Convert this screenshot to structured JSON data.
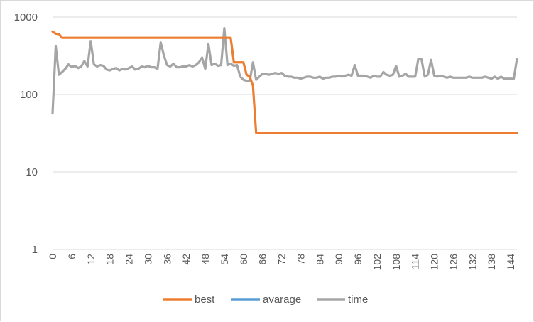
{
  "chart_data": {
    "type": "line",
    "title": "",
    "xlabel": "",
    "ylabel": "",
    "y_scale": "log",
    "ylim": [
      1,
      1000
    ],
    "y_ticks": [
      "1",
      "10",
      "100",
      "1000"
    ],
    "x_tick_labels": [
      "0",
      "6",
      "12",
      "18",
      "24",
      "30",
      "36",
      "42",
      "48",
      "54",
      "60",
      "66",
      "72",
      "78",
      "84",
      "90",
      "96",
      "102",
      "108",
      "114",
      "120",
      "126",
      "132",
      "138",
      "144"
    ],
    "grid": "horizontal",
    "legend_position": "bottom",
    "series": [
      {
        "name": "best",
        "color": "#ED7D31",
        "points": [
          [
            0,
            650
          ],
          [
            1,
            610
          ],
          [
            2,
            605
          ],
          [
            3,
            540
          ],
          [
            20,
            540
          ],
          [
            40,
            540
          ],
          [
            55,
            540
          ],
          [
            56,
            540
          ],
          [
            57,
            260
          ],
          [
            58,
            260
          ],
          [
            59,
            260
          ],
          [
            60,
            260
          ],
          [
            61,
            180
          ],
          [
            62,
            170
          ],
          [
            63,
            130
          ],
          [
            64,
            32
          ],
          [
            80,
            32
          ],
          [
            100,
            32
          ],
          [
            120,
            32
          ],
          [
            140,
            32
          ],
          [
            146,
            32
          ]
        ]
      },
      {
        "name": "avarage",
        "color": "#5B9BD5",
        "points": []
      },
      {
        "name": "time",
        "color": "#A5A5A5",
        "points": [
          [
            0,
            57
          ],
          [
            1,
            420
          ],
          [
            2,
            180
          ],
          [
            3,
            195
          ],
          [
            4,
            215
          ],
          [
            5,
            245
          ],
          [
            6,
            225
          ],
          [
            7,
            235
          ],
          [
            8,
            220
          ],
          [
            9,
            230
          ],
          [
            10,
            270
          ],
          [
            11,
            230
          ],
          [
            12,
            490
          ],
          [
            13,
            245
          ],
          [
            14,
            230
          ],
          [
            15,
            240
          ],
          [
            16,
            235
          ],
          [
            17,
            210
          ],
          [
            18,
            205
          ],
          [
            19,
            215
          ],
          [
            20,
            220
          ],
          [
            21,
            205
          ],
          [
            22,
            215
          ],
          [
            23,
            210
          ],
          [
            24,
            220
          ],
          [
            25,
            230
          ],
          [
            26,
            210
          ],
          [
            27,
            215
          ],
          [
            28,
            230
          ],
          [
            29,
            225
          ],
          [
            30,
            235
          ],
          [
            31,
            225
          ],
          [
            32,
            225
          ],
          [
            33,
            215
          ],
          [
            34,
            470
          ],
          [
            35,
            320
          ],
          [
            36,
            240
          ],
          [
            37,
            230
          ],
          [
            38,
            250
          ],
          [
            39,
            225
          ],
          [
            40,
            225
          ],
          [
            41,
            230
          ],
          [
            42,
            230
          ],
          [
            43,
            240
          ],
          [
            44,
            230
          ],
          [
            45,
            240
          ],
          [
            46,
            260
          ],
          [
            47,
            300
          ],
          [
            48,
            215
          ],
          [
            49,
            450
          ],
          [
            50,
            240
          ],
          [
            51,
            250
          ],
          [
            52,
            235
          ],
          [
            53,
            240
          ],
          [
            54,
            720
          ],
          [
            55,
            240
          ],
          [
            56,
            250
          ],
          [
            57,
            235
          ],
          [
            58,
            240
          ],
          [
            59,
            170
          ],
          [
            60,
            155
          ],
          [
            61,
            150
          ],
          [
            62,
            150
          ],
          [
            63,
            260
          ],
          [
            64,
            155
          ],
          [
            65,
            170
          ],
          [
            66,
            185
          ],
          [
            67,
            185
          ],
          [
            68,
            180
          ],
          [
            69,
            185
          ],
          [
            70,
            190
          ],
          [
            71,
            185
          ],
          [
            72,
            190
          ],
          [
            73,
            175
          ],
          [
            74,
            170
          ],
          [
            75,
            170
          ],
          [
            76,
            165
          ],
          [
            77,
            165
          ],
          [
            78,
            160
          ],
          [
            79,
            165
          ],
          [
            80,
            170
          ],
          [
            81,
            170
          ],
          [
            82,
            165
          ],
          [
            83,
            165
          ],
          [
            84,
            170
          ],
          [
            85,
            160
          ],
          [
            86,
            165
          ],
          [
            87,
            165
          ],
          [
            88,
            170
          ],
          [
            89,
            170
          ],
          [
            90,
            175
          ],
          [
            91,
            170
          ],
          [
            92,
            175
          ],
          [
            93,
            180
          ],
          [
            94,
            175
          ],
          [
            95,
            240
          ],
          [
            96,
            175
          ],
          [
            97,
            175
          ],
          [
            98,
            175
          ],
          [
            99,
            170
          ],
          [
            100,
            165
          ],
          [
            101,
            175
          ],
          [
            102,
            170
          ],
          [
            103,
            170
          ],
          [
            104,
            195
          ],
          [
            105,
            180
          ],
          [
            106,
            175
          ],
          [
            107,
            180
          ],
          [
            108,
            235
          ],
          [
            109,
            170
          ],
          [
            110,
            175
          ],
          [
            111,
            185
          ],
          [
            112,
            170
          ],
          [
            113,
            170
          ],
          [
            114,
            170
          ],
          [
            115,
            290
          ],
          [
            116,
            285
          ],
          [
            117,
            170
          ],
          [
            118,
            180
          ],
          [
            119,
            280
          ],
          [
            120,
            175
          ],
          [
            121,
            170
          ],
          [
            122,
            175
          ],
          [
            123,
            170
          ],
          [
            124,
            165
          ],
          [
            125,
            170
          ],
          [
            126,
            165
          ],
          [
            127,
            165
          ],
          [
            128,
            165
          ],
          [
            129,
            165
          ],
          [
            130,
            165
          ],
          [
            131,
            170
          ],
          [
            132,
            165
          ],
          [
            133,
            165
          ],
          [
            134,
            165
          ],
          [
            135,
            165
          ],
          [
            136,
            170
          ],
          [
            137,
            165
          ],
          [
            138,
            160
          ],
          [
            139,
            170
          ],
          [
            140,
            160
          ],
          [
            141,
            170
          ],
          [
            142,
            160
          ],
          [
            143,
            160
          ],
          [
            144,
            160
          ],
          [
            145,
            160
          ],
          [
            146,
            290
          ]
        ]
      }
    ]
  }
}
